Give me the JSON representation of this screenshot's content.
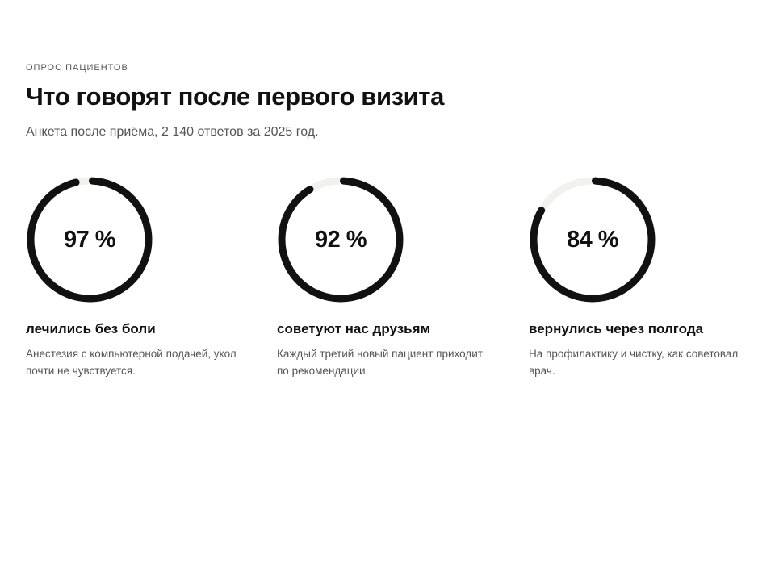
{
  "header": {
    "eyebrow": "ОПРОС ПАЦИЕНТОВ",
    "title": "Что говорят после первого визита",
    "subtitle": "Анкета после приёма, 2 140 ответов за 2025 год."
  },
  "colors": {
    "ring_fill": "#111111",
    "ring_track": "#f1f1ef",
    "text_primary": "#111111",
    "text_secondary": "#555555"
  },
  "chart_data": {
    "type": "pie",
    "title": "Что говорят после первого визита",
    "subtitle": "Анкета после приёма, 2 140 ответов за 2025 год.",
    "unit": "%",
    "items": [
      {
        "value": 97,
        "value_label": "97 %",
        "label": "лечились без боли",
        "description": "Анестезия с компьютерной подачей, укол почти не чувствуется."
      },
      {
        "value": 92,
        "value_label": "92 %",
        "label": "советуют нас друзьям",
        "description": "Каждый третий новый пациент приходит по рекомендации."
      },
      {
        "value": 84,
        "value_label": "84 %",
        "label": "вернулись через полгода",
        "description": "На профилактику и чистку, как советовал врач."
      }
    ]
  }
}
